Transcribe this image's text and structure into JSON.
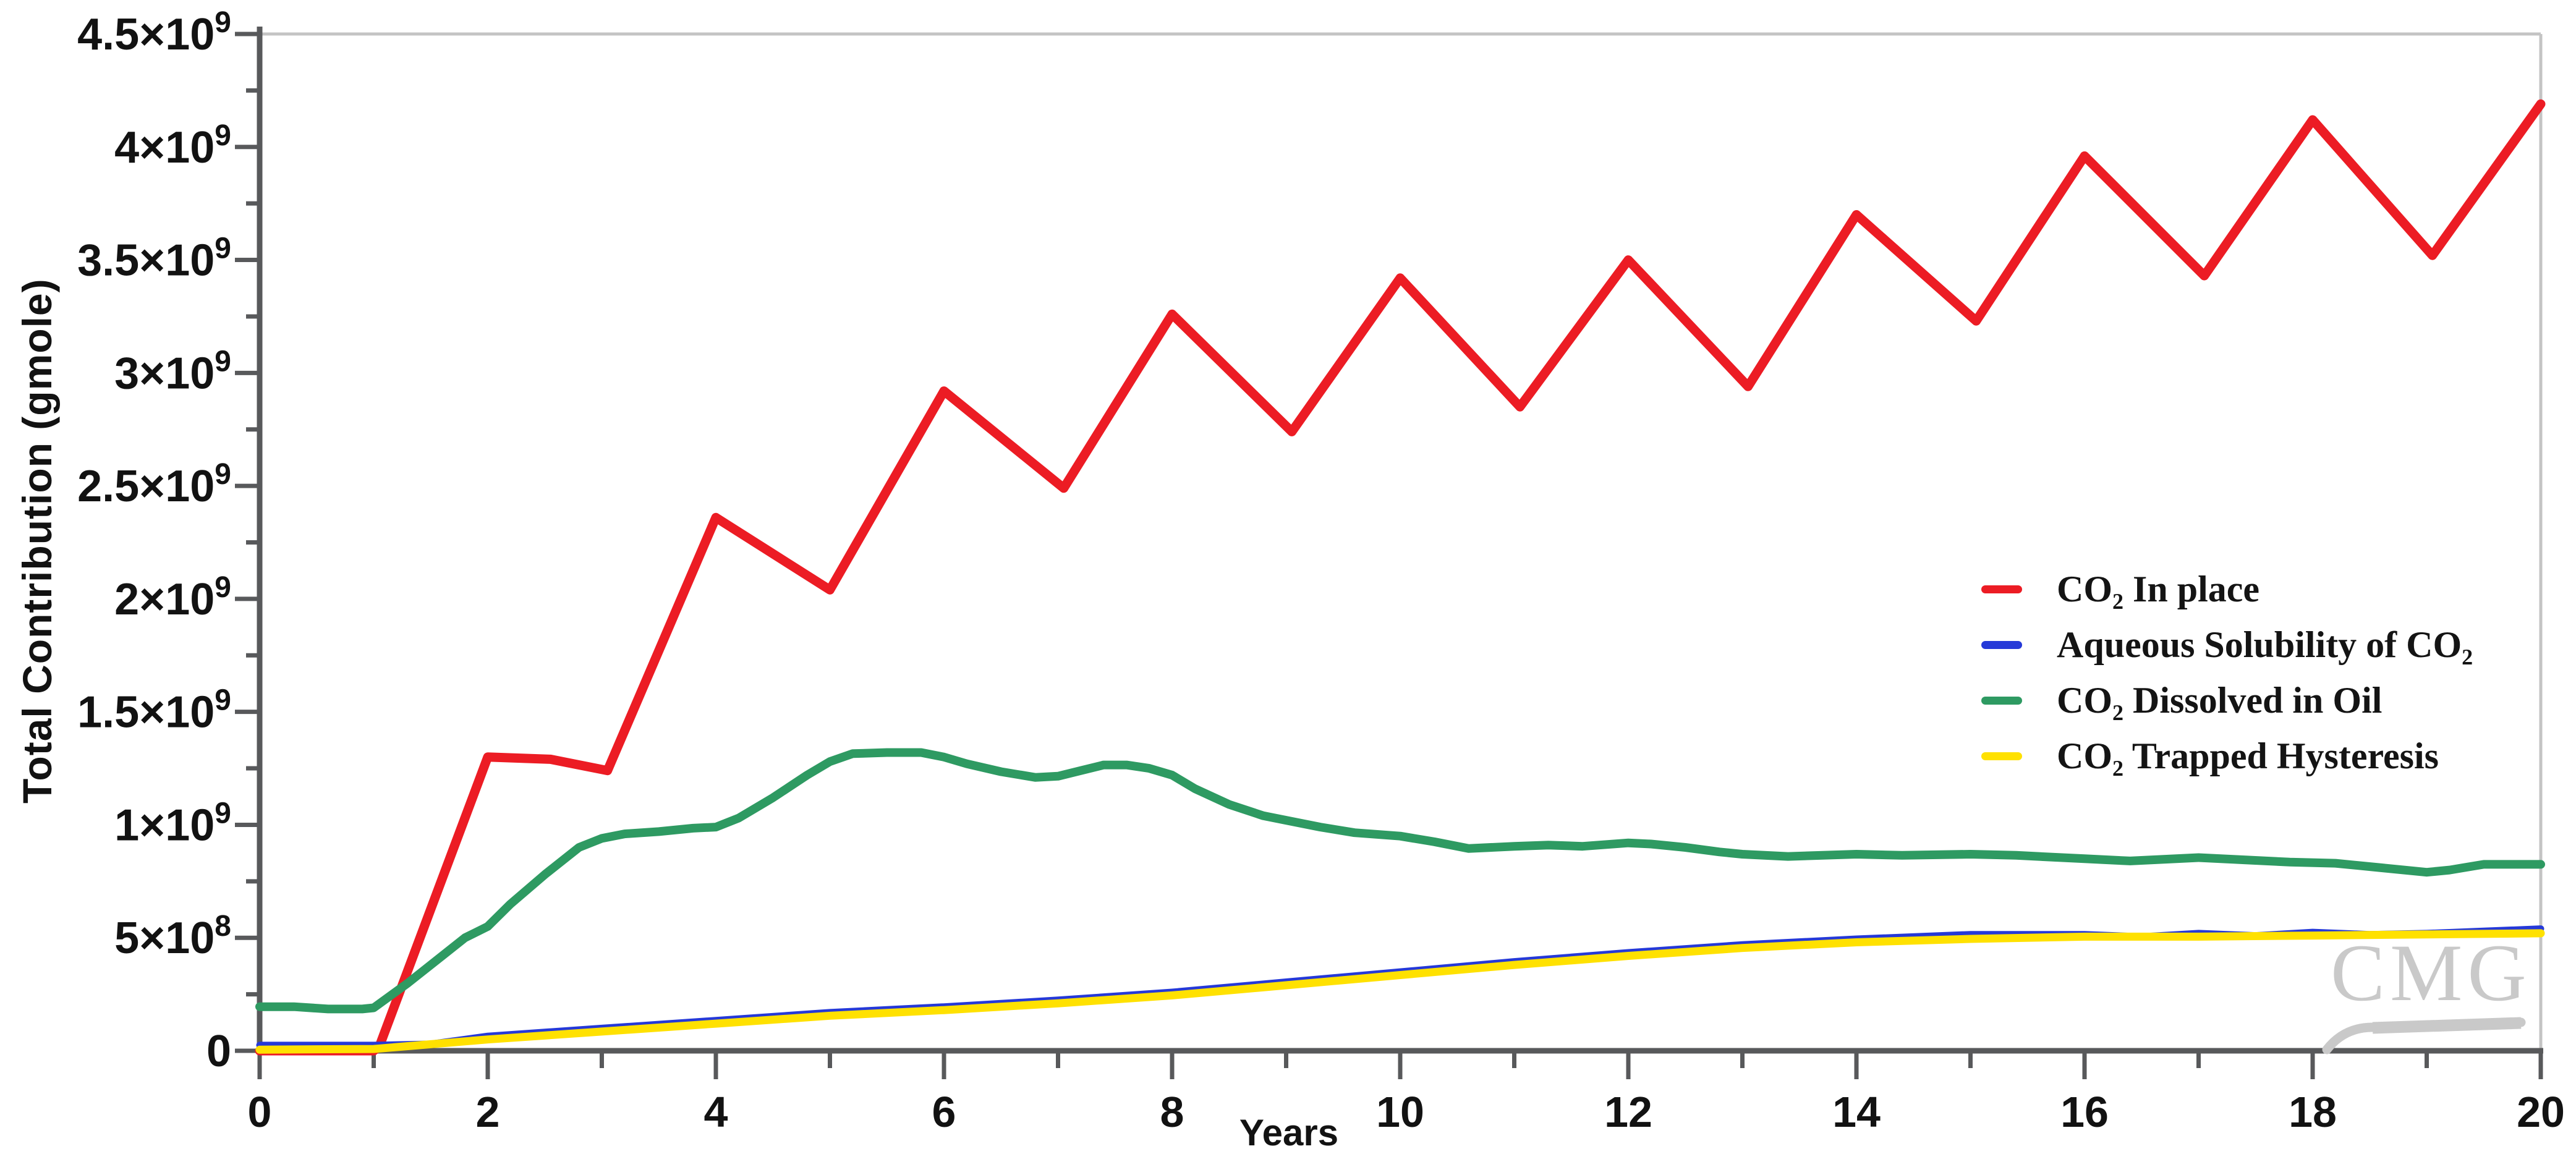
{
  "yaxis": {
    "title": "Total Contribution (gmole)",
    "labels": [
      {
        "m": "4.5×10",
        "e": "9",
        "v": 4500000000.0
      },
      {
        "m": "4×10",
        "e": "9",
        "v": 4000000000.0
      },
      {
        "m": "3.5×10",
        "e": "9",
        "v": 3500000000.0
      },
      {
        "m": "3×10",
        "e": "9",
        "v": 3000000000.0
      },
      {
        "m": "2.5×10",
        "e": "9",
        "v": 2500000000.0
      },
      {
        "m": "2×10",
        "e": "9",
        "v": 2000000000.0
      },
      {
        "m": "1.5×10",
        "e": "9",
        "v": 1500000000.0
      },
      {
        "m": "1×10",
        "e": "9",
        "v": 1000000000.0
      },
      {
        "m": "5×10",
        "e": "8",
        "v": 500000000.0
      },
      {
        "m": "0",
        "e": "",
        "v": 0
      }
    ]
  },
  "xaxis": {
    "title": "Years",
    "labels": [
      {
        "t": "0",
        "v": 0
      },
      {
        "t": "2",
        "v": 2
      },
      {
        "t": "4",
        "v": 4
      },
      {
        "t": "6",
        "v": 6
      },
      {
        "t": "8",
        "v": 8
      },
      {
        "t": "10",
        "v": 10
      },
      {
        "t": "12",
        "v": 12
      },
      {
        "t": "14",
        "v": 14
      },
      {
        "t": "16",
        "v": 16
      },
      {
        "t": "18",
        "v": 18
      },
      {
        "t": "20",
        "v": 20
      }
    ]
  },
  "legend": [
    {
      "label": "CO₂ In place",
      "color": "#EC1C24"
    },
    {
      "label": "Aqueous Solubility of CO₂",
      "color": "#2539D8"
    },
    {
      "label": "CO₂ Dissolved in Oil",
      "color": "#2E9A62"
    },
    {
      "label": "CO₂ Trapped Hysteresis",
      "color": "#FFE100"
    }
  ],
  "watermark": "CMG",
  "colors": {
    "axis": "#58595B",
    "frame": "#C4C4C4",
    "text": "#121212",
    "watermark": "#C9C9C9"
  },
  "chart_data": {
    "type": "line",
    "title": "",
    "xlabel": "Years",
    "ylabel": "Total Contribution (gmole)",
    "xlim": [
      0,
      20
    ],
    "ylim": [
      0,
      4500000000.0
    ],
    "x_major_step": 2,
    "x_minor_step": 1,
    "y_major_step": 500000000.0,
    "y_minor_step": 250000000.0,
    "grid": false,
    "legend_position": "right-middle",
    "series": [
      {
        "name": "CO₂ In place",
        "color": "#EC1C24",
        "x": [
          0,
          1.0,
          1.05,
          2.0,
          2.55,
          3.05,
          4.0,
          5.0,
          6.0,
          7.05,
          8.0,
          9.05,
          10.0,
          11.05,
          12.0,
          13.05,
          14.0,
          15.05,
          16.0,
          17.05,
          18.0,
          19.05,
          20.0
        ],
        "y": [
          0,
          0,
          20000000.0,
          1300000000.0,
          1290000000.0,
          1240000000.0,
          2360000000.0,
          2040000000.0,
          2920000000.0,
          2490000000.0,
          3260000000.0,
          2740000000.0,
          3420000000.0,
          2850000000.0,
          3500000000.0,
          2940000000.0,
          3700000000.0,
          3230000000.0,
          3960000000.0,
          3430000000.0,
          4120000000.0,
          3520000000.0,
          4190000000.0
        ]
      },
      {
        "name": "Aqueous Solubility of CO₂",
        "color": "#2539D8",
        "x": [
          0,
          1.0,
          1.5,
          2.0,
          3.0,
          4.0,
          5.0,
          6.0,
          7.0,
          8.0,
          9.0,
          10.0,
          11.0,
          12.0,
          13.0,
          14.0,
          15.0,
          16.0,
          16.5,
          17.0,
          17.5,
          18.0,
          18.5,
          19.0,
          19.5,
          20.0
        ],
        "y": [
          25000000.0,
          25000000.0,
          30000000.0,
          65000000.0,
          100000000.0,
          135000000.0,
          170000000.0,
          195000000.0,
          225000000.0,
          260000000.0,
          305000000.0,
          350000000.0,
          395000000.0,
          435000000.0,
          470000000.0,
          495000000.0,
          515000000.0,
          515000000.0,
          505000000.0,
          520000000.0,
          510000000.0,
          525000000.0,
          515000000.0,
          520000000.0,
          530000000.0,
          540000000.0
        ]
      },
      {
        "name": "CO₂ Dissolved in Oil",
        "color": "#2E9A62",
        "x": [
          0,
          0.3,
          0.6,
          0.9,
          1.0,
          1.3,
          1.6,
          1.8,
          2.0,
          2.2,
          2.5,
          2.8,
          3.0,
          3.2,
          3.5,
          3.8,
          4.0,
          4.2,
          4.5,
          4.8,
          5.0,
          5.2,
          5.5,
          5.8,
          6.0,
          6.2,
          6.5,
          6.8,
          7.0,
          7.2,
          7.4,
          7.6,
          7.8,
          8.0,
          8.2,
          8.5,
          8.8,
          9.0,
          9.3,
          9.6,
          10.0,
          10.3,
          10.6,
          11.0,
          11.3,
          11.6,
          12.0,
          12.2,
          12.5,
          12.8,
          13.0,
          13.4,
          14.0,
          14.4,
          15.0,
          15.4,
          16.0,
          16.4,
          17.0,
          17.4,
          17.8,
          18.2,
          18.6,
          19.0,
          19.2,
          19.5,
          20.0
        ],
        "y": [
          195000000.0,
          195000000.0,
          185000000.0,
          185000000.0,
          190000000.0,
          300000000.0,
          420000000.0,
          500000000.0,
          550000000.0,
          650000000.0,
          780000000.0,
          900000000.0,
          940000000.0,
          960000000.0,
          970000000.0,
          985000000.0,
          990000000.0,
          1030000000.0,
          1120000000.0,
          1220000000.0,
          1280000000.0,
          1315000000.0,
          1320000000.0,
          1320000000.0,
          1300000000.0,
          1270000000.0,
          1235000000.0,
          1210000000.0,
          1215000000.0,
          1240000000.0,
          1265000000.0,
          1265000000.0,
          1250000000.0,
          1220000000.0,
          1160000000.0,
          1090000000.0,
          1040000000.0,
          1020000000.0,
          990000000.0,
          965000000.0,
          950000000.0,
          925000000.0,
          895000000.0,
          905000000.0,
          910000000.0,
          905000000.0,
          920000000.0,
          915000000.0,
          900000000.0,
          880000000.0,
          870000000.0,
          860000000.0,
          870000000.0,
          865000000.0,
          870000000.0,
          865000000.0,
          850000000.0,
          840000000.0,
          855000000.0,
          845000000.0,
          835000000.0,
          830000000.0,
          810000000.0,
          790000000.0,
          800000000.0,
          825000000.0,
          825000000.0
        ]
      },
      {
        "name": "CO₂ Trapped Hysteresis",
        "color": "#FFE100",
        "x": [
          0,
          1.0,
          2.0,
          3.0,
          4.0,
          5.0,
          6.0,
          7.0,
          8.0,
          9.0,
          10.0,
          11.0,
          12.0,
          13.0,
          14.0,
          15.0,
          16.0,
          17.0,
          18.0,
          19.0,
          20.0
        ],
        "y": [
          5000000.0,
          8000000.0,
          50000000.0,
          85000000.0,
          120000000.0,
          155000000.0,
          180000000.0,
          210000000.0,
          245000000.0,
          290000000.0,
          335000000.0,
          380000000.0,
          420000000.0,
          455000000.0,
          480000000.0,
          495000000.0,
          505000000.0,
          505000000.0,
          510000000.0,
          515000000.0,
          520000000.0
        ]
      }
    ]
  }
}
